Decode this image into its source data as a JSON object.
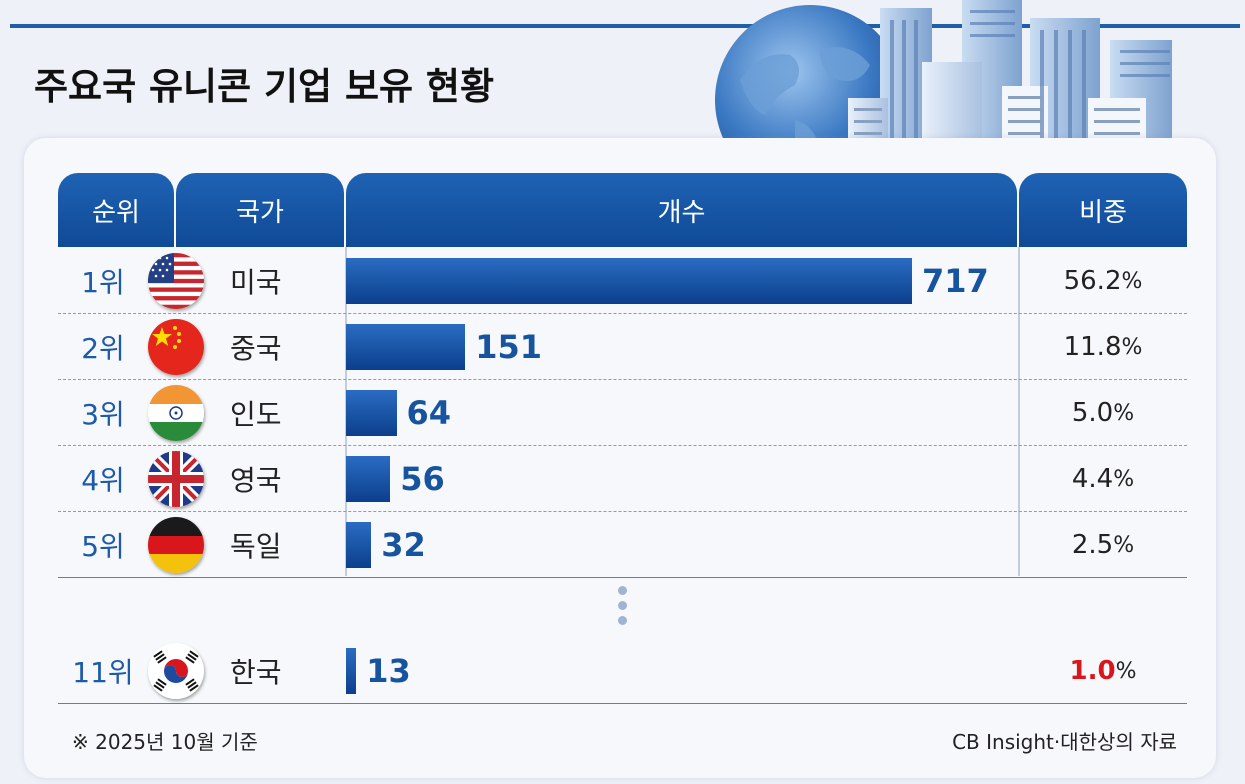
{
  "title": "주요국 유니콘 기업 보유 현황",
  "headers": {
    "rank": "순위",
    "country": "국가",
    "count": "개수",
    "share": "비중"
  },
  "chart_data": {
    "type": "bar",
    "orientation": "horizontal",
    "title": "주요국 유니콘 기업 보유 현황",
    "rows": [
      {
        "rank": "1위",
        "country": "미국",
        "flag": "us-flag-icon",
        "value": 717,
        "share": "56.2"
      },
      {
        "rank": "2위",
        "country": "중국",
        "flag": "china-flag-icon",
        "value": 151,
        "share": "11.8"
      },
      {
        "rank": "3위",
        "country": "인도",
        "flag": "india-flag-icon",
        "value": 64,
        "share": "5.0"
      },
      {
        "rank": "4위",
        "country": "영국",
        "flag": "uk-flag-icon",
        "value": 56,
        "share": "4.4"
      },
      {
        "rank": "5위",
        "country": "독일",
        "flag": "germany-flag-icon",
        "value": 32,
        "share": "2.5"
      },
      {
        "rank": "11위",
        "country": "한국",
        "flag": "korea-flag-icon",
        "value": 13,
        "share": "1.0",
        "highlight": true
      }
    ],
    "percent_sign": "%",
    "max_value": 717,
    "bar_color": "#1a55a6",
    "highlight_color": "#d9161c"
  },
  "footnote": "※ 2025년 10월 기준",
  "source": "CB Insight·대한상의 자료"
}
